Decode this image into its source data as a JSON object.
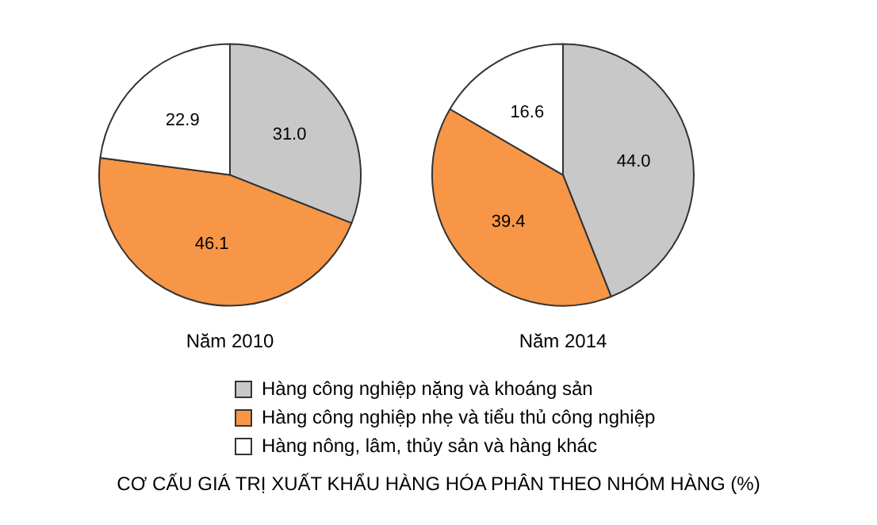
{
  "chart_data": [
    {
      "type": "pie",
      "title": "Năm 2010",
      "categories": [
        "Hàng công nghiệp nặng và khoáng sản",
        "Hàng công nghiệp nhẹ và tiểu thủ công nghiệp",
        "Hàng nông, lâm, thủy sản và hàng khác"
      ],
      "values": [
        31.0,
        46.1,
        22.9
      ],
      "value_labels": [
        "31.0",
        "46.1",
        "22.9"
      ],
      "colors": [
        "#c8c8c8",
        "#f79646",
        "#ffffff"
      ],
      "legend": "bottom",
      "annotations": [
        "CƠ CẤU GIÁ TRỊ XUẤT KHẨU HÀNG HÓA PHÂN THEO NHÓM HÀNG (%)"
      ]
    },
    {
      "type": "pie",
      "title": "Năm 2014",
      "categories": [
        null,
        null,
        null
      ],
      "values": [
        44.0,
        39.4,
        16.6
      ],
      "value_labels": [
        "44.0",
        "39.4",
        "16.6"
      ],
      "colors": [
        "#c8c8c8",
        "#f79646",
        "#ffffff"
      ]
    }
  ]
}
